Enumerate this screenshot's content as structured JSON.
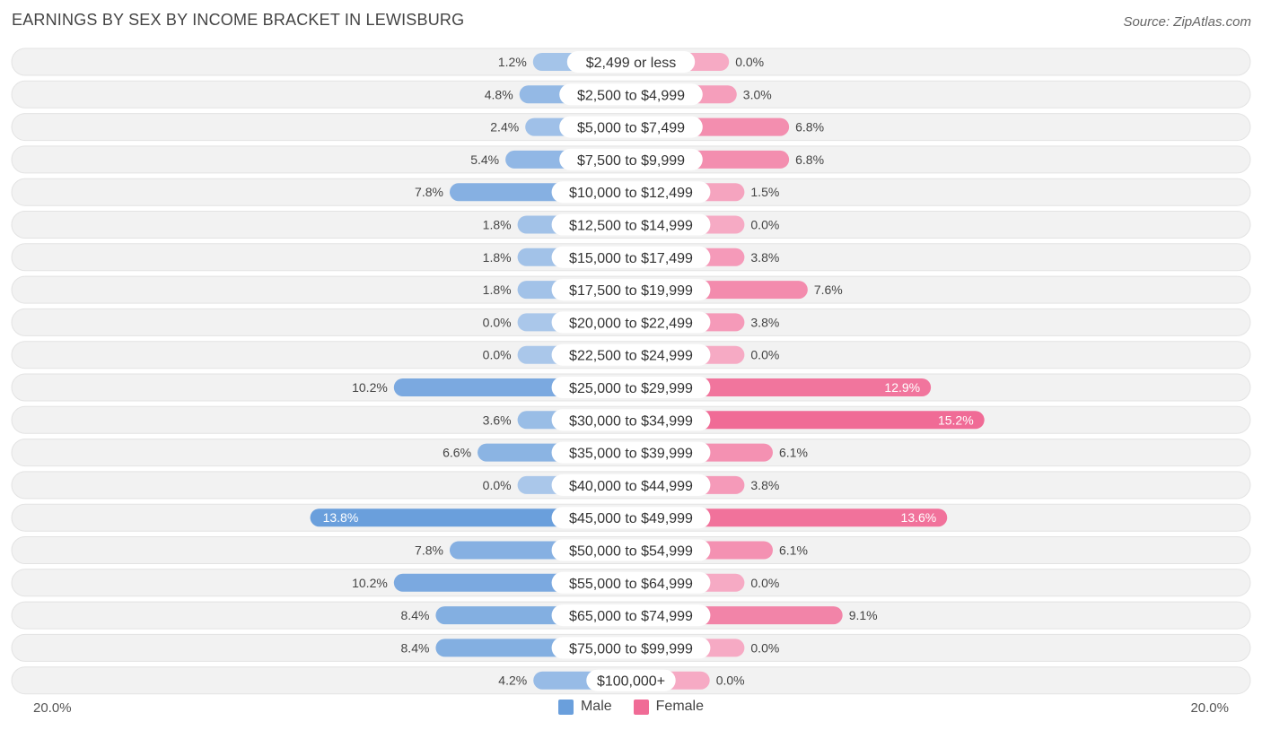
{
  "title": "EARNINGS BY SEX BY INCOME BRACKET IN LEWISBURG",
  "source": "Source: ZipAtlas.com",
  "axis": {
    "left_label": "20.0%",
    "right_label": "20.0%"
  },
  "legend": [
    {
      "label": "Male",
      "color": "#6a9fdc"
    },
    {
      "label": "Female",
      "color": "#f06b96"
    }
  ],
  "chart_data": {
    "type": "bar",
    "orientation": "horizontal-diverging",
    "title": "EARNINGS BY SEX BY INCOME BRACKET IN LEWISBURG",
    "xlim": [
      -20,
      20
    ],
    "categories": [
      "$2,499 or less",
      "$2,500 to $4,999",
      "$5,000 to $7,499",
      "$7,500 to $9,999",
      "$10,000 to $12,499",
      "$12,500 to $14,999",
      "$15,000 to $17,499",
      "$17,500 to $19,999",
      "$20,000 to $22,499",
      "$22,500 to $24,999",
      "$25,000 to $29,999",
      "$30,000 to $34,999",
      "$35,000 to $39,999",
      "$40,000 to $44,999",
      "$45,000 to $49,999",
      "$50,000 to $54,999",
      "$55,000 to $64,999",
      "$65,000 to $74,999",
      "$75,000 to $99,999",
      "$100,000+"
    ],
    "series": [
      {
        "name": "Male",
        "values": [
          1.2,
          4.8,
          2.4,
          5.4,
          7.8,
          1.8,
          1.8,
          1.8,
          0.0,
          0.0,
          10.2,
          3.6,
          6.6,
          0.0,
          13.8,
          7.8,
          10.2,
          8.4,
          8.4,
          4.2
        ],
        "labels": [
          "1.2%",
          "4.8%",
          "2.4%",
          "5.4%",
          "7.8%",
          "1.8%",
          "1.8%",
          "1.8%",
          "0.0%",
          "0.0%",
          "10.2%",
          "3.6%",
          "6.6%",
          "0.0%",
          "13.8%",
          "7.8%",
          "10.2%",
          "8.4%",
          "8.4%",
          "4.2%"
        ]
      },
      {
        "name": "Female",
        "values": [
          0.0,
          3.0,
          6.8,
          6.8,
          1.5,
          0.0,
          3.8,
          7.6,
          3.8,
          0.0,
          12.9,
          15.2,
          6.1,
          3.8,
          13.6,
          6.1,
          0.0,
          9.1,
          0.0,
          0.0
        ],
        "labels": [
          "0.0%",
          "3.0%",
          "6.8%",
          "6.8%",
          "1.5%",
          "0.0%",
          "3.8%",
          "7.6%",
          "3.8%",
          "0.0%",
          "12.9%",
          "15.2%",
          "6.1%",
          "3.8%",
          "13.6%",
          "6.1%",
          "0.0%",
          "9.1%",
          "0.0%",
          "0.0%"
        ]
      }
    ]
  }
}
